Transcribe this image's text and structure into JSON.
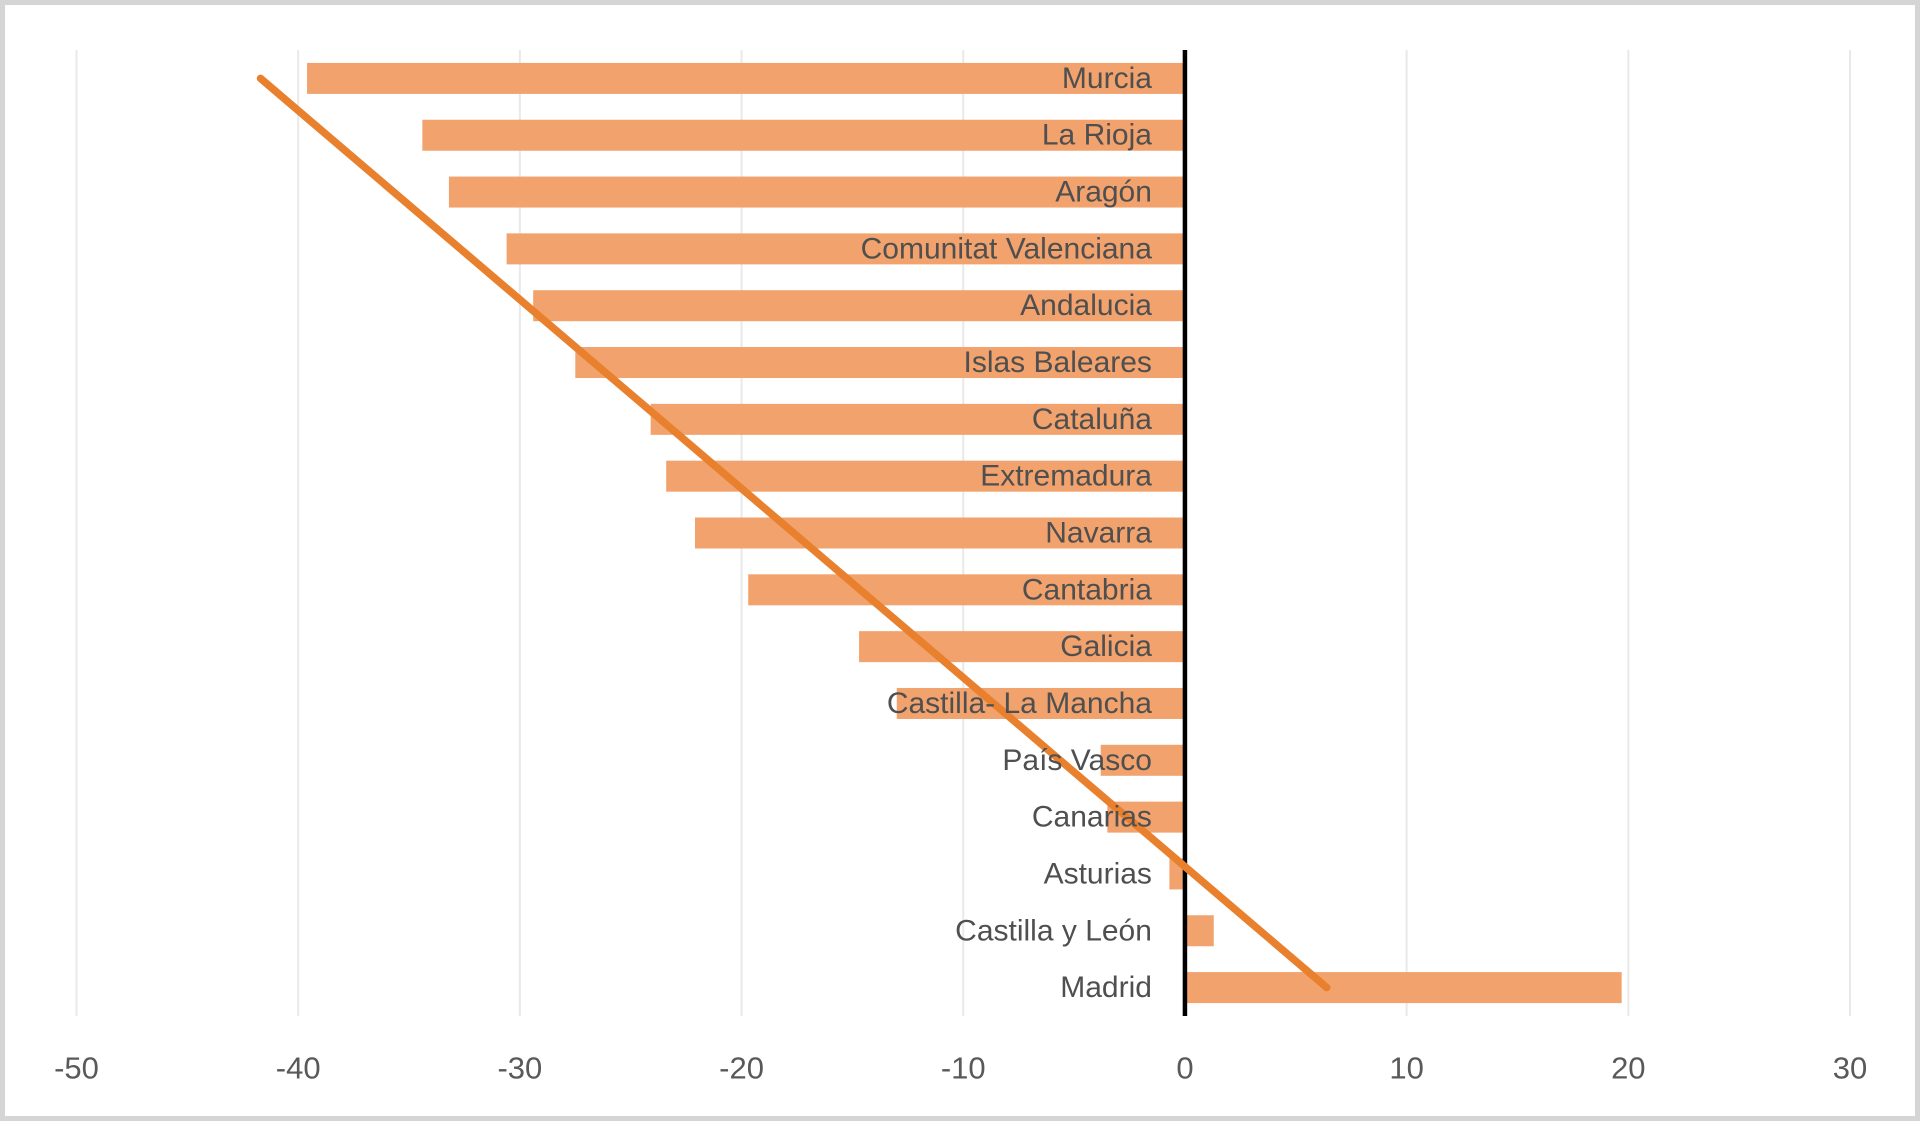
{
  "chart_data": {
    "type": "bar",
    "orientation": "horizontal",
    "title": "",
    "xlabel": "",
    "ylabel": "",
    "legend": "none",
    "grid": "vertical",
    "categories": [
      "Murcia",
      "La Rioja",
      "Aragón",
      "Comunitat Valenciana",
      "Andalucia",
      "Islas Baleares",
      "Cataluña",
      "Extremadura",
      "Navarra",
      "Cantabria",
      "Galicia",
      "Castilla- La Mancha",
      "País Vasco",
      "Canarias",
      "Asturias",
      "Castilla y León",
      "Madrid"
    ],
    "values": [
      -39.6,
      -34.4,
      -33.2,
      -30.6,
      -29.4,
      -27.5,
      -24.1,
      -23.4,
      -22.1,
      -19.7,
      -14.7,
      -13.0,
      -3.8,
      -3.5,
      -0.7,
      1.3,
      19.7
    ],
    "x_ticks": [
      -50,
      -40,
      -30,
      -20,
      -10,
      0,
      10,
      20,
      30
    ],
    "xlim": [
      -50,
      30
    ],
    "trendline": {
      "type": "linear",
      "start_value": -41.7,
      "start_category": "Murcia",
      "end_value": 6.4,
      "end_category": "Madrid"
    },
    "colors": {
      "bar_fill": "#F1A26D",
      "trendline": "#E8802D",
      "zero_axis": "#000000",
      "gridline": "#E9E9E9",
      "category_label": "#4F4F4F",
      "tick_label": "#595959",
      "frame_border": "#D5D5D5",
      "background": "#FFFFFF"
    }
  }
}
